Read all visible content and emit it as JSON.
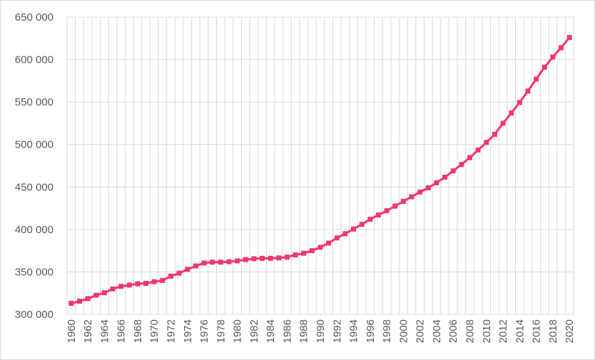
{
  "chart_data": {
    "type": "line",
    "title": "",
    "xlabel": "",
    "ylabel": "",
    "ylim": [
      300000,
      650000
    ],
    "y_ticks": [
      300000,
      350000,
      400000,
      450000,
      500000,
      550000,
      600000,
      650000
    ],
    "y_tick_labels": [
      "300 000",
      "350 000",
      "400 000",
      "450 000",
      "500 000",
      "550 000",
      "600 000",
      "650 000"
    ],
    "x_tick_labels": [
      "1960",
      "1962",
      "1964",
      "1966",
      "1968",
      "1970",
      "1972",
      "1974",
      "1976",
      "1978",
      "1980",
      "1982",
      "1984",
      "1986",
      "1988",
      "1990",
      "1992",
      "1994",
      "1996",
      "1998",
      "2000",
      "2002",
      "2004",
      "2006",
      "2008",
      "2010",
      "2012",
      "2014",
      "2016",
      "2018",
      "2020"
    ],
    "grid": true,
    "legend": "none",
    "series_color": "#f0386b",
    "x": [
      1960,
      1961,
      1962,
      1963,
      1964,
      1965,
      1966,
      1967,
      1968,
      1969,
      1970,
      1971,
      1972,
      1973,
      1974,
      1975,
      1976,
      1977,
      1978,
      1979,
      1980,
      1981,
      1982,
      1983,
      1984,
      1985,
      1986,
      1987,
      1988,
      1989,
      1990,
      1991,
      1992,
      1993,
      1994,
      1995,
      1996,
      1997,
      1998,
      1999,
      2000,
      2001,
      2002,
      2003,
      2004,
      2005,
      2006,
      2007,
      2008,
      2009,
      2010,
      2011,
      2012,
      2013,
      2014,
      2015,
      2016,
      2017,
      2018,
      2019,
      2020
    ],
    "series": [
      {
        "values": [
          313000,
          315500,
          318500,
          322500,
          325500,
          330000,
          333000,
          334500,
          336000,
          336500,
          338500,
          340000,
          345000,
          348500,
          353000,
          357000,
          360500,
          361500,
          361500,
          362000,
          363000,
          364500,
          365500,
          366000,
          366000,
          366500,
          367500,
          370000,
          372000,
          375000,
          379000,
          384000,
          390000,
          395000,
          400500,
          406000,
          412000,
          417000,
          422000,
          427500,
          433000,
          438500,
          444000,
          449000,
          455000,
          461500,
          469000,
          476500,
          484500,
          493500,
          502500,
          512000,
          525000,
          537000,
          549500,
          563000,
          577000,
          591000,
          603000,
          614000,
          626000
        ]
      }
    ]
  }
}
